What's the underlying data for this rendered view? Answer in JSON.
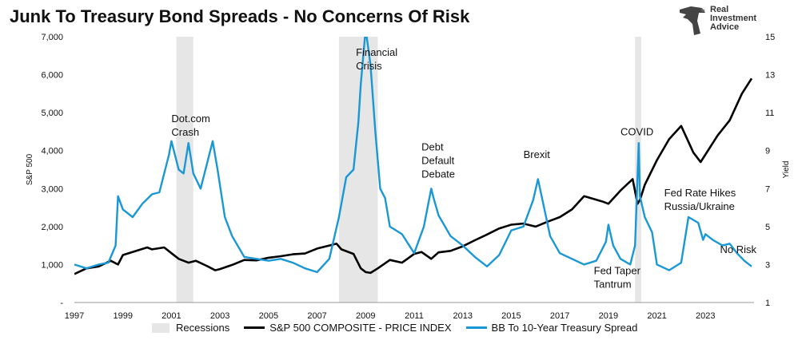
{
  "title": "Junk To Treasury Bond Spreads - No Concerns Of Risk",
  "logo": {
    "line1": "Real",
    "line2": "Investment",
    "line3": "Advice"
  },
  "colors": {
    "sp500": "#000000",
    "spread": "#1a97d5",
    "recession": "#e6e6e6"
  },
  "chart_data": {
    "type": "line",
    "title": "Junk To Treasury Bond Spreads - No Concerns Of Risk",
    "x_range": [
      1997.0,
      2025.0
    ],
    "x_ticks": [
      "1997",
      "1999",
      "2001",
      "2003",
      "2005",
      "2007",
      "2009",
      "2011",
      "2013",
      "2015",
      "2017",
      "2019",
      "2021",
      "2023"
    ],
    "y_left": {
      "label": "S&P 500",
      "range": [
        0,
        7000
      ],
      "ticks": [
        "-",
        "1,000",
        "2,000",
        "3,000",
        "4,000",
        "5,000",
        "6,000",
        "7,000"
      ]
    },
    "y_right": {
      "label": "Yield",
      "range": [
        1,
        15
      ],
      "ticks": [
        "1",
        "3",
        "5",
        "7",
        "9",
        "11",
        "13",
        "15"
      ]
    },
    "grid": false,
    "legend_position": "bottom",
    "legend": [
      "Recessions",
      "S&P 500 COMPOSITE - PRICE INDEX",
      "BB To 10-Year Treasury Spread"
    ],
    "recessions": [
      [
        2001.2,
        2001.9
      ],
      [
        2007.9,
        2009.5
      ],
      [
        2020.1,
        2020.35
      ]
    ],
    "annotations": [
      {
        "text": [
          "Dot.com",
          "Crash"
        ],
        "x": 2001.0,
        "y_yield": 10.5
      },
      {
        "text": [
          "Financial",
          "Crisis"
        ],
        "x": 2008.6,
        "y_yield": 14.0
      },
      {
        "text": [
          "Debt",
          "Default",
          "Debate"
        ],
        "x": 2011.3,
        "y_yield": 9.0
      },
      {
        "text": [
          "Brexit"
        ],
        "x": 2015.5,
        "y_yield": 8.6
      },
      {
        "text": [
          "COVID"
        ],
        "x": 2019.5,
        "y_yield": 9.8
      },
      {
        "text": [
          "Fed Rate Hikes",
          "Russia/Ukraine"
        ],
        "x": 2021.3,
        "y_yield": 6.6
      },
      {
        "text": [
          "Fed Taper",
          "Tantrum"
        ],
        "x": 2018.4,
        "y_yield": 2.5
      },
      {
        "text": [
          "No Risk"
        ],
        "x": 2023.6,
        "y_yield": 3.6
      }
    ],
    "series": [
      {
        "name": "S&P 500 COMPOSITE - PRICE INDEX",
        "axis": "left",
        "x": [
          1997.0,
          1997.5,
          1998.0,
          1998.5,
          1998.8,
          1999.0,
          1999.5,
          2000.0,
          2000.2,
          2000.7,
          2001.0,
          2001.3,
          2001.7,
          2002.0,
          2002.5,
          2002.8,
          2003.0,
          2003.5,
          2004.0,
          2004.5,
          2005.0,
          2005.5,
          2006.0,
          2006.5,
          2007.0,
          2007.5,
          2007.8,
          2008.0,
          2008.5,
          2008.8,
          2009.0,
          2009.2,
          2009.5,
          2010.0,
          2010.5,
          2011.0,
          2011.3,
          2011.7,
          2012.0,
          2012.5,
          2013.0,
          2013.5,
          2014.0,
          2014.5,
          2015.0,
          2015.5,
          2016.0,
          2016.5,
          2017.0,
          2017.5,
          2018.0,
          2018.8,
          2019.0,
          2019.5,
          2020.0,
          2020.2,
          2020.3,
          2020.5,
          2021.0,
          2021.5,
          2022.0,
          2022.5,
          2022.8,
          2023.0,
          2023.5,
          2024.0,
          2024.5,
          2024.9
        ],
        "values": [
          750,
          900,
          950,
          1100,
          1000,
          1250,
          1350,
          1450,
          1400,
          1450,
          1300,
          1150,
          1050,
          1100,
          950,
          850,
          880,
          990,
          1120,
          1110,
          1180,
          1220,
          1270,
          1290,
          1420,
          1500,
          1550,
          1400,
          1280,
          900,
          800,
          780,
          900,
          1120,
          1050,
          1280,
          1330,
          1150,
          1320,
          1360,
          1480,
          1640,
          1790,
          1950,
          2050,
          2080,
          2000,
          2130,
          2250,
          2450,
          2800,
          2650,
          2600,
          2950,
          3250,
          2600,
          2700,
          3100,
          3750,
          4300,
          4650,
          3950,
          3700,
          3900,
          4400,
          4800,
          5500,
          5900
        ]
      },
      {
        "name": "BB To 10-Year Treasury Spread",
        "axis": "right",
        "x": [
          1997.0,
          1997.5,
          1998.0,
          1998.4,
          1998.7,
          1998.8,
          1999.0,
          1999.4,
          1999.8,
          2000.2,
          2000.5,
          2000.9,
          2001.0,
          2001.3,
          2001.5,
          2001.7,
          2001.9,
          2002.2,
          2002.5,
          2002.7,
          2002.9,
          2003.2,
          2003.5,
          2004.0,
          2004.5,
          2005.0,
          2005.5,
          2006.0,
          2006.5,
          2007.0,
          2007.5,
          2007.9,
          2008.2,
          2008.5,
          2008.7,
          2008.8,
          2009.0,
          2009.2,
          2009.4,
          2009.6,
          2009.8,
          2010.0,
          2010.5,
          2011.0,
          2011.4,
          2011.7,
          2011.8,
          2012.0,
          2012.5,
          2013.0,
          2013.5,
          2014.0,
          2014.5,
          2015.0,
          2015.5,
          2015.9,
          2016.1,
          2016.3,
          2016.6,
          2017.0,
          2017.5,
          2018.0,
          2018.5,
          2018.9,
          2019.0,
          2019.2,
          2019.5,
          2019.9,
          2020.1,
          2020.25,
          2020.3,
          2020.5,
          2020.8,
          2021.0,
          2021.5,
          2022.0,
          2022.3,
          2022.7,
          2022.9,
          2023.0,
          2023.3,
          2023.7,
          2024.0,
          2024.3,
          2024.6,
          2024.9
        ],
        "values": [
          3.0,
          2.8,
          3.0,
          3.1,
          4.0,
          6.6,
          5.9,
          5.5,
          6.2,
          6.7,
          6.8,
          8.8,
          9.5,
          8.0,
          7.8,
          9.4,
          7.8,
          7.0,
          8.5,
          9.5,
          8.0,
          5.5,
          4.5,
          3.4,
          3.3,
          3.2,
          3.3,
          3.1,
          2.8,
          2.6,
          3.3,
          5.5,
          7.6,
          8.0,
          10.5,
          12.5,
          15.4,
          13.5,
          10.0,
          7.0,
          6.5,
          5.0,
          4.6,
          3.6,
          5.0,
          7.0,
          6.5,
          5.6,
          4.5,
          4.0,
          3.4,
          2.9,
          3.5,
          4.8,
          5.0,
          6.4,
          7.5,
          6.3,
          4.5,
          3.6,
          3.3,
          3.0,
          3.2,
          4.2,
          5.1,
          4.0,
          3.3,
          3.0,
          4.0,
          9.4,
          6.6,
          5.5,
          4.7,
          3.0,
          2.7,
          3.1,
          5.5,
          5.2,
          4.3,
          4.6,
          4.3,
          4.0,
          4.1,
          3.6,
          3.2,
          2.9
        ]
      }
    ]
  }
}
